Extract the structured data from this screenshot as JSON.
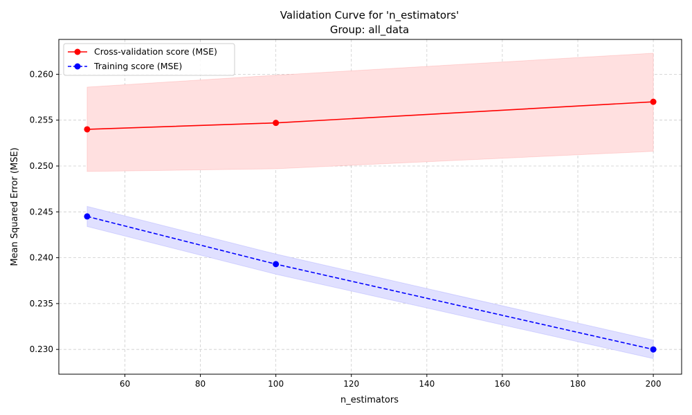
{
  "chart_data": {
    "type": "line",
    "title": "Validation Curve for 'n_estimators'",
    "subtitle": "Group: all_data",
    "xlabel": "n_estimators",
    "ylabel": "Mean Squared Error (MSE)",
    "xlim": [
      42.5,
      207.5
    ],
    "ylim": [
      0.2273,
      0.2638
    ],
    "xticks": [
      60,
      80,
      100,
      120,
      140,
      160,
      180,
      200
    ],
    "xtick_labels": [
      "60",
      "80",
      "100",
      "120",
      "140",
      "160",
      "180",
      "200"
    ],
    "yticks": [
      0.23,
      0.235,
      0.24,
      0.245,
      0.25,
      0.255,
      0.26
    ],
    "ytick_labels": [
      "0.230",
      "0.235",
      "0.240",
      "0.245",
      "0.250",
      "0.255",
      "0.260"
    ],
    "grid": true,
    "legend_position": "top-left",
    "x": [
      50,
      100,
      200
    ],
    "series": [
      {
        "name": "Cross-validation score (MSE)",
        "values": [
          0.254,
          0.2547,
          0.257
        ],
        "band_upper": [
          0.2586,
          0.2599,
          0.2623
        ],
        "band_lower": [
          0.2494,
          0.2497,
          0.2516
        ],
        "color": "#ff0000",
        "band_color": "#ffe0e0",
        "linestyle": "solid"
      },
      {
        "name": "Training score (MSE)",
        "values": [
          0.2445,
          0.2393,
          0.23
        ],
        "band_upper": [
          0.2456,
          0.2404,
          0.231
        ],
        "band_lower": [
          0.2434,
          0.2382,
          0.229
        ],
        "color": "#0000ff",
        "band_color": "#e0e0ff",
        "linestyle": "dashed"
      }
    ]
  }
}
